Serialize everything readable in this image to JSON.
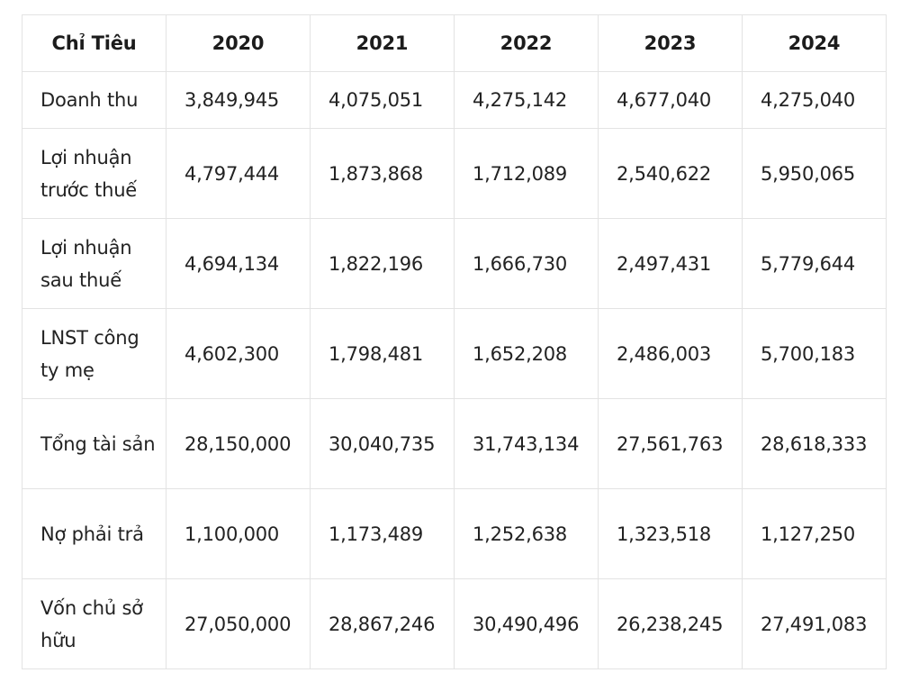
{
  "table": {
    "headers": [
      "Chỉ Tiêu",
      "2020",
      "2021",
      "2022",
      "2023",
      "2024"
    ],
    "rows": [
      {
        "label": "Doanh thu",
        "values": [
          "3,849,945",
          "4,075,051",
          "4,275,142",
          "4,677,040",
          "4,275,040"
        ]
      },
      {
        "label": "Lợi nhuận trước thuế",
        "values": [
          "4,797,444",
          "1,873,868",
          "1,712,089",
          "2,540,622",
          "5,950,065"
        ]
      },
      {
        "label": "Lợi nhuận sau thuế",
        "values": [
          "4,694,134",
          "1,822,196",
          "1,666,730",
          "2,497,431",
          "5,779,644"
        ]
      },
      {
        "label": "LNST công ty mẹ",
        "values": [
          "4,602,300",
          "1,798,481",
          "1,652,208",
          "2,486,003",
          "5,700,183"
        ]
      },
      {
        "label": "Tổng tài sản",
        "values": [
          "28,150,000",
          "30,040,735",
          "31,743,134",
          "27,561,763",
          "28,618,333"
        ]
      },
      {
        "label": "Nợ phải trả",
        "values": [
          "1,100,000",
          "1,173,489",
          "1,252,638",
          "1,323,518",
          "1,127,250"
        ]
      },
      {
        "label": "Vốn chủ sở hữu",
        "values": [
          "27,050,000",
          "28,867,246",
          "30,490,496",
          "26,238,245",
          "27,491,083"
        ]
      }
    ]
  }
}
